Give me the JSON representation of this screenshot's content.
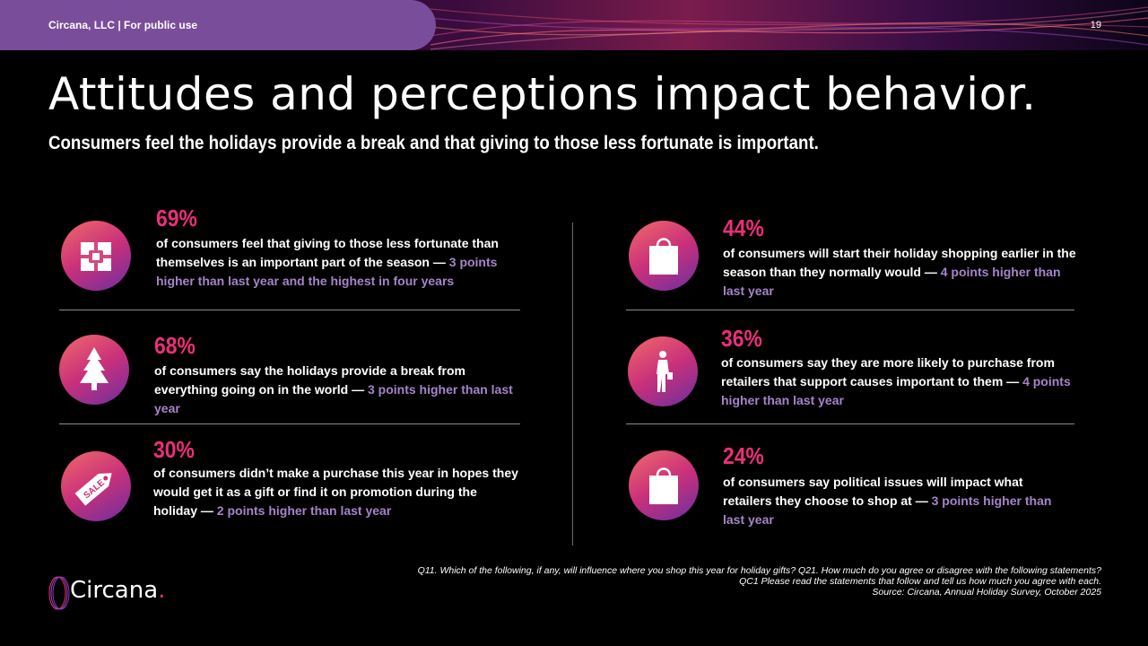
{
  "header": {
    "label": "Circana, LLC |  For public use",
    "page_number": "19"
  },
  "title": "Attitudes and perceptions impact behavior.",
  "subtitle": "Consumers feel the holidays provide a break and that giving to those less fortunate is important.",
  "stats": [
    {
      "icon": "gift-icon",
      "percent": "69%",
      "text": "of consumers feel that giving to those less fortunate than themselves is an important part of the season — ",
      "highlight": "3 points higher than last year and the highest in four years"
    },
    {
      "icon": "christmas-tree-icon",
      "percent": "68%",
      "text": "of consumers say the holidays provide a break from everything going on in the world — ",
      "highlight": "3 points higher than last year"
    },
    {
      "icon": "sale-tag-icon",
      "percent": "30%",
      "text": "of consumers didn’t make a purchase this year in hopes they would get it as a gift or find it on promotion during the holiday — ",
      "highlight": "2 points higher than last year"
    },
    {
      "icon": "shopping-bag-icon",
      "percent": "44%",
      "text": "of consumers will start their holiday shopping earlier in the season than they normally would — ",
      "highlight": "4 points higher than last year"
    },
    {
      "icon": "shopper-person-icon",
      "percent": "36%",
      "text": "of consumers say they are more likely to purchase from retailers that support causes important to them — ",
      "highlight": "4 points higher than last year"
    },
    {
      "icon": "shopping-bag-icon",
      "percent": "24%",
      "text": "of consumers say political issues will impact what retailers they choose to shop at — ",
      "highlight": "3 points higher than last year"
    }
  ],
  "footnote": {
    "line1": "Q11. Which of the following, if any, will influence where you shop this year for holiday gifts? Q21. How much do you agree or disagree with the following statements?",
    "line2": "QC1 Please read the statements that follow and tell us how much you agree with each.",
    "line3": "Source: Circana, Annual Holiday Survey, October 2025"
  },
  "logo": {
    "text": "Circana",
    "dot": "."
  },
  "colors": {
    "accent_pink": "#ec2f7a",
    "highlight_purple": "#a584c9",
    "pill_purple": "#7a4d9a",
    "background": "#000000"
  }
}
